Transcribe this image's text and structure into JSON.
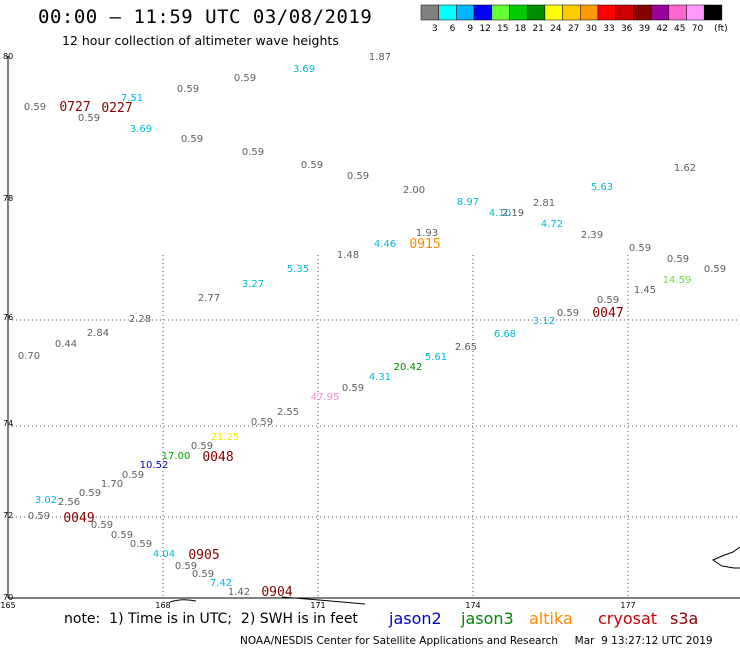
{
  "title": "00:00 – 11:59 UTC 03/08/2019",
  "subtitle": "12 hour collection of altimeter wave heights",
  "colorbar": {
    "swatches": [
      "#808080",
      "#00ffff",
      "#00b4ff",
      "#0000ff",
      "#66ff33",
      "#00cc00",
      "#008c00",
      "#ffff00",
      "#ffcc00",
      "#ff9900",
      "#ff0000",
      "#cc0000",
      "#880000",
      "#990099",
      "#ff66cc",
      "#ff99ff",
      "#000000"
    ],
    "labels": [
      "3",
      "6",
      "9",
      "12",
      "15",
      "18",
      "21",
      "24",
      "27",
      "30",
      "33",
      "36",
      "39",
      "42",
      "45",
      "70",
      "(ft)"
    ]
  },
  "lat_labels": [
    "80",
    "78",
    "76",
    "74",
    "72",
    "70"
  ],
  "lon_labels": [
    "165",
    "168",
    "171",
    "174",
    "177"
  ],
  "note": "note:  1) Time is in UTC;  2) SWH is in feet",
  "satellites": [
    {
      "name": "jason2",
      "color": "#0000cc"
    },
    {
      "name": "jason3",
      "color": "#008800"
    },
    {
      "name": "altika",
      "color": "#ff8800"
    },
    {
      "name": "cryosat",
      "color": "#cc0000"
    },
    {
      "name": "s3a",
      "color": "#880000"
    }
  ],
  "credit": "NOAA/NESDIS Center for Satellite Applications and Research     Mar  9 13:27:12 UTC 2019",
  "wave_heights": [
    {
      "t": "1.87",
      "c": "#606060"
    },
    {
      "t": "3.69",
      "c": "#00bbdd"
    },
    {
      "t": "0.59",
      "c": "#606060"
    },
    {
      "t": "0.59",
      "c": "#606060"
    },
    {
      "t": "7.51",
      "c": "#00bbdd"
    },
    {
      "t": "0.59",
      "c": "#606060"
    },
    {
      "t": "0.59",
      "c": "#606060"
    },
    {
      "t": "3.69",
      "c": "#00bbdd"
    },
    {
      "t": "0.59",
      "c": "#606060"
    },
    {
      "t": "0.59",
      "c": "#606060"
    },
    {
      "t": "0.59",
      "c": "#606060"
    },
    {
      "t": "0.59",
      "c": "#606060"
    },
    {
      "t": "2.00",
      "c": "#606060"
    },
    {
      "t": "5.63",
      "c": "#00bbdd"
    },
    {
      "t": "1.62",
      "c": "#606060"
    },
    {
      "t": "8.97",
      "c": "#00bbdd"
    },
    {
      "t": "4.10",
      "c": "#00bbdd"
    },
    {
      "t": "2.19",
      "c": "#606060"
    },
    {
      "t": "2.81",
      "c": "#606060"
    },
    {
      "t": "4.72",
      "c": "#00bbdd"
    },
    {
      "t": "2.39",
      "c": "#606060"
    },
    {
      "t": "1.93",
      "c": "#606060"
    },
    {
      "t": "4.46",
      "c": "#00bbdd"
    },
    {
      "t": "0.59",
      "c": "#606060"
    },
    {
      "t": "0.59",
      "c": "#606060"
    },
    {
      "t": "0.59",
      "c": "#606060"
    },
    {
      "t": "1.48",
      "c": "#606060"
    },
    {
      "t": "5.35",
      "c": "#00bbdd"
    },
    {
      "t": "14.59",
      "c": "#66dd33"
    },
    {
      "t": "3.27",
      "c": "#00bbdd"
    },
    {
      "t": "1.45",
      "c": "#606060"
    },
    {
      "t": "2.77",
      "c": "#606060"
    },
    {
      "t": "0.59",
      "c": "#606060"
    },
    {
      "t": "0.59",
      "c": "#606060"
    },
    {
      "t": "3.12",
      "c": "#00bbdd"
    },
    {
      "t": "2.28",
      "c": "#606060"
    },
    {
      "t": "6.68",
      "c": "#00bbdd"
    },
    {
      "t": "2.84",
      "c": "#606060"
    },
    {
      "t": "2.65",
      "c": "#606060"
    },
    {
      "t": "0.44",
      "c": "#606060"
    },
    {
      "t": "5.61",
      "c": "#00bbdd"
    },
    {
      "t": "0.70",
      "c": "#606060"
    },
    {
      "t": "20.42",
      "c": "#008800"
    },
    {
      "t": "4.31",
      "c": "#00bbdd"
    },
    {
      "t": "0.59",
      "c": "#606060"
    },
    {
      "t": "47.95",
      "c": "#ff88dd"
    },
    {
      "t": "2.55",
      "c": "#606060"
    },
    {
      "t": "0.59",
      "c": "#606060"
    },
    {
      "t": "21.25",
      "c": "#eeee00"
    },
    {
      "t": "0.59",
      "c": "#606060"
    },
    {
      "t": "17.00",
      "c": "#00aa00"
    },
    {
      "t": "10.52",
      "c": "#0000cc"
    },
    {
      "t": "0.59",
      "c": "#606060"
    },
    {
      "t": "1.70",
      "c": "#606060"
    },
    {
      "t": "0.59",
      "c": "#606060"
    },
    {
      "t": "3.02",
      "c": "#00bbdd"
    },
    {
      "t": "2.56",
      "c": "#606060"
    },
    {
      "t": "0.59",
      "c": "#606060"
    },
    {
      "t": "0.59",
      "c": "#606060"
    },
    {
      "t": "0.59",
      "c": "#606060"
    },
    {
      "t": "0.59",
      "c": "#606060"
    },
    {
      "t": "4.04",
      "c": "#00bbdd"
    },
    {
      "t": "0.59",
      "c": "#606060"
    },
    {
      "t": "0.59",
      "c": "#606060"
    },
    {
      "t": "7.42",
      "c": "#00bbdd"
    },
    {
      "t": "1.42",
      "c": "#606060"
    }
  ],
  "pass_times": [
    {
      "t": "0727",
      "c": "#880000"
    },
    {
      "t": "0227",
      "c": "#880000"
    },
    {
      "t": "0915",
      "c": "#ff8800"
    },
    {
      "t": "0047",
      "c": "#880000"
    },
    {
      "t": "0048",
      "c": "#880000"
    },
    {
      "t": "0049",
      "c": "#880000"
    },
    {
      "t": "0905",
      "c": "#880000"
    },
    {
      "t": "0904",
      "c": "#880000"
    }
  ]
}
